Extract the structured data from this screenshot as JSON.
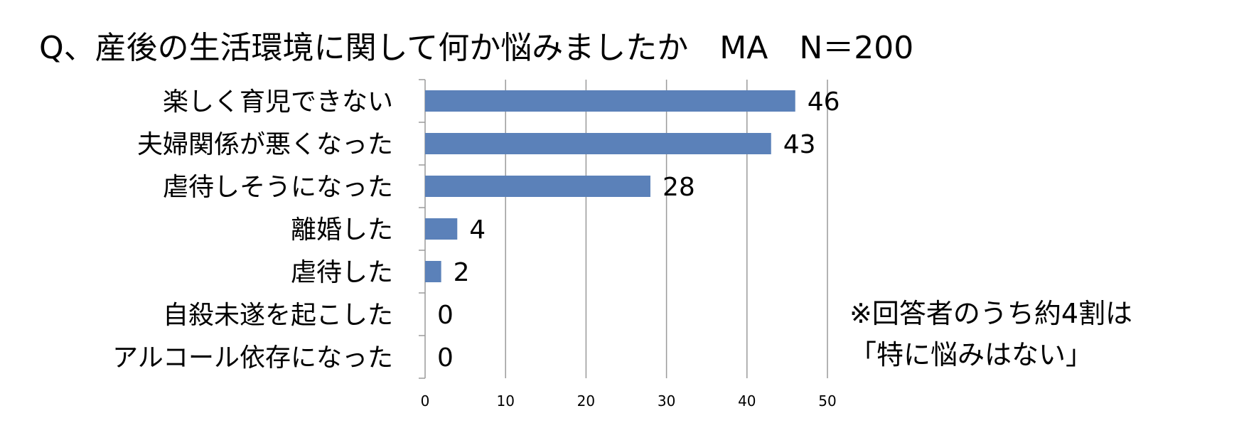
{
  "chart_data": {
    "type": "bar",
    "orientation": "horizontal",
    "title": "Q、産後の生活環境に関して何か悩みましたか　MA　N＝200",
    "categories": [
      "楽しく育児できない",
      "夫婦関係が悪くなった",
      "虐待しそうになった",
      "離婚した",
      "虐待した",
      "自殺未遂を起こした",
      "アルコール依存になった"
    ],
    "values": [
      46,
      43,
      28,
      4,
      2,
      0,
      0
    ],
    "xlim": [
      0,
      50
    ],
    "xticks": [
      0,
      10,
      20,
      30,
      40,
      50
    ],
    "grid": "vertical",
    "legend": "none",
    "bar_color": "#5b81b9",
    "grid_color": "#9a9a9a",
    "note_lines": [
      "※回答者のうち約4割は",
      "「特に悩みはない」"
    ]
  }
}
